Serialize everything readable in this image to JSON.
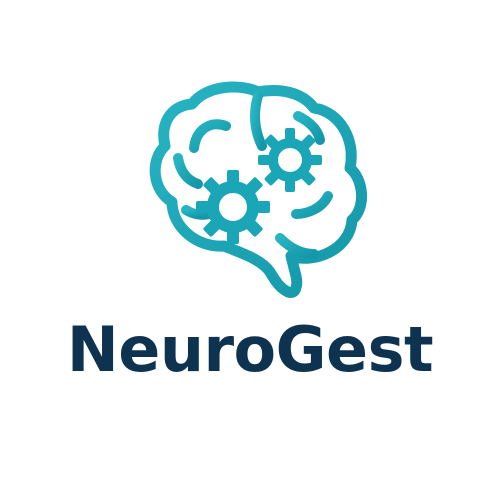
{
  "brand": {
    "name": "NeuroGest"
  },
  "icons": {
    "mark": "brain-gears-icon",
    "gear_large": "gear-icon",
    "gear_small": "gear-icon"
  },
  "colors": {
    "icon": "#1aa6b7",
    "text": "#0e3350",
    "background": "#ffffff"
  }
}
